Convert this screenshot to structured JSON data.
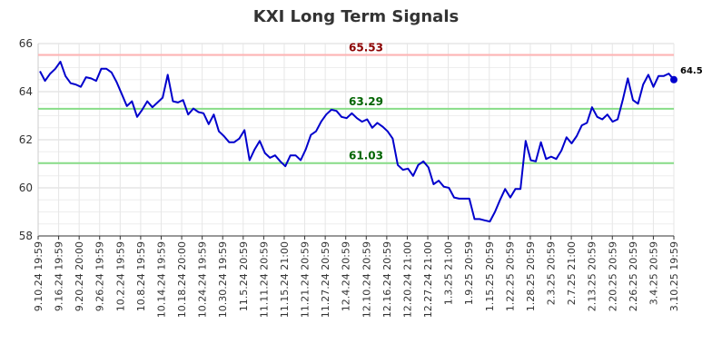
{
  "chart_data": {
    "type": "line",
    "title": "KXI Long Term Signals",
    "xlabel": "",
    "ylabel": "",
    "ylim": [
      58,
      66
    ],
    "y_ticks": [
      "58",
      "60",
      "62",
      "64",
      "66"
    ],
    "x_tick_labels": [
      "9.10.24 19:59",
      "9.16.24 19:59",
      "9.20.24 20:00",
      "9.26.24 19:59",
      "10.2.24 19:59",
      "10.8.24 19:59",
      "10.14.24 19:59",
      "10.18.24 20:00",
      "10.24.24 19:59",
      "10.30.24 19:59",
      "11.5.24 20:59",
      "11.11.24 20:59",
      "11.15.24 21:00",
      "11.21.24 20:59",
      "11.27.24 20:59",
      "12.4.24 20:59",
      "12.10.24 20:59",
      "12.16.24 20:59",
      "12.20.24 21:00",
      "12.27.24 21:00",
      "1.3.25 21:00",
      "1.9.25 20:59",
      "1.15.25 20:59",
      "1.22.25 20:59",
      "1.28.25 20:59",
      "2.3.25 20:59",
      "2.7.25 21:00",
      "2.13.25 20:59",
      "2.20.25 20:59",
      "2.26.25 20:59",
      "3.4.25 20:59",
      "3.10.25 19:59"
    ],
    "grid": true,
    "series": [
      {
        "color": "#0000cc",
        "values": [
          64.85,
          64.45,
          64.75,
          64.95,
          65.25,
          64.65,
          64.35,
          64.3,
          64.2,
          64.6,
          64.55,
          64.45,
          64.95,
          64.95,
          64.8,
          64.4,
          63.9,
          63.4,
          63.6,
          62.95,
          63.25,
          63.6,
          63.35,
          63.55,
          63.75,
          64.7,
          63.6,
          63.55,
          63.65,
          63.05,
          63.3,
          63.15,
          63.1,
          62.65,
          63.05,
          62.35,
          62.15,
          61.9,
          61.9,
          62.05,
          62.4,
          61.15,
          61.6,
          61.95,
          61.45,
          61.25,
          61.35,
          61.1,
          60.9,
          61.35,
          61.35,
          61.15,
          61.6,
          62.2,
          62.35,
          62.75,
          63.05,
          63.25,
          63.2,
          62.95,
          62.9,
          63.1,
          62.9,
          62.75,
          62.85,
          62.5,
          62.7,
          62.55,
          62.35,
          62.05,
          60.95,
          60.75,
          60.8,
          60.5,
          60.95,
          61.1,
          60.85,
          60.15,
          60.3,
          60.05,
          60.0,
          59.6,
          59.55,
          59.55,
          59.55,
          58.7,
          58.7,
          58.65,
          58.6,
          59.0,
          59.5,
          59.95,
          59.6,
          59.95,
          59.95,
          61.95,
          61.15,
          61.1,
          61.9,
          61.2,
          61.3,
          61.2,
          61.55,
          62.1,
          61.85,
          62.15,
          62.6,
          62.7,
          63.35,
          62.95,
          62.85,
          63.05,
          62.75,
          62.85,
          63.65,
          64.55,
          63.65,
          63.5,
          64.3,
          64.7,
          64.2,
          64.65,
          64.65,
          64.75,
          64.5
        ]
      }
    ],
    "reference_lines": [
      {
        "value": 65.53,
        "label": "65.53",
        "line_color": "#ffb3b3",
        "text_color": "#8b0000"
      },
      {
        "value": 63.29,
        "label": "63.29",
        "line_color": "#88dd88",
        "text_color": "#006400"
      },
      {
        "value": 61.03,
        "label": "61.03",
        "line_color": "#88dd88",
        "text_color": "#006400"
      }
    ],
    "last_value_label": "64.5"
  }
}
